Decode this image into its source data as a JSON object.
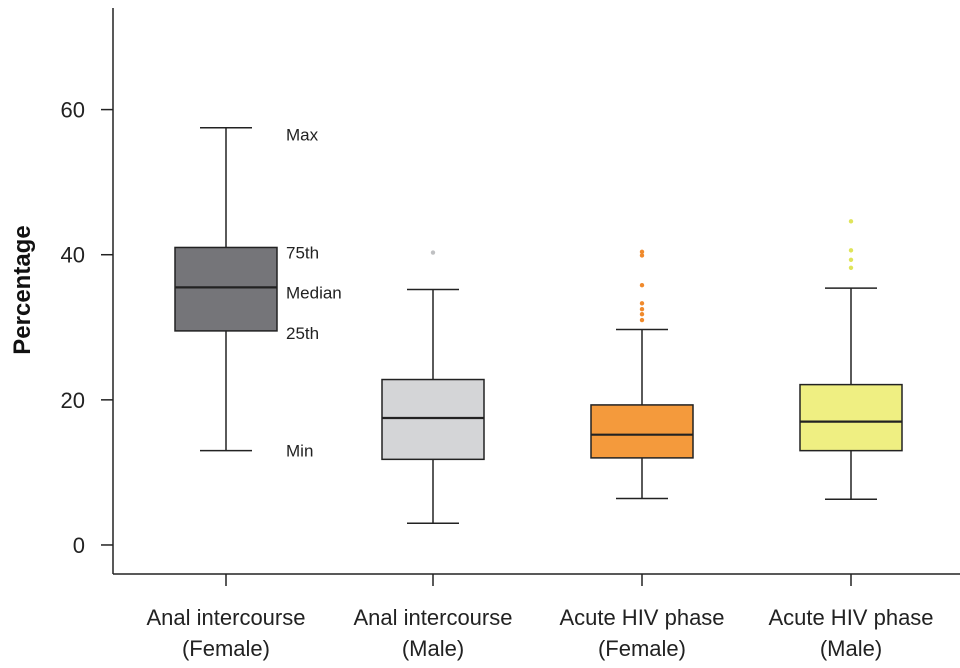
{
  "chart_data": {
    "type": "box",
    "ylabel": "Percentage",
    "ylim": [
      -4,
      74
    ],
    "yticks": [
      0,
      20,
      40,
      60
    ],
    "categories": [
      {
        "line1": "Anal intercourse",
        "line2": "(Female)"
      },
      {
        "line1": "Anal intercourse",
        "line2": "(Male)"
      },
      {
        "line1": "Acute HIV phase",
        "line2": "(Female)"
      },
      {
        "line1": "Acute HIV phase",
        "line2": "(Male)"
      }
    ],
    "boxes": [
      {
        "min": 13.0,
        "q1": 29.5,
        "median": 35.5,
        "q3": 41.0,
        "max": 57.5,
        "color": "#757579",
        "outliers": [],
        "outlier_color": "#757579"
      },
      {
        "min": 3.0,
        "q1": 11.8,
        "median": 17.5,
        "q3": 22.8,
        "max": 35.2,
        "color": "#d4d5d7",
        "outliers": [
          40.3
        ],
        "outlier_color": "#bfc0c2"
      },
      {
        "min": 6.4,
        "q1": 12.0,
        "median": 15.2,
        "q3": 19.3,
        "max": 29.7,
        "color": "#f49a3c",
        "outliers": [
          31.0,
          31.8,
          32.5,
          33.3,
          35.8,
          39.9,
          40.4
        ],
        "outlier_color": "#f08a2c"
      },
      {
        "min": 6.3,
        "q1": 13.0,
        "median": 17.0,
        "q3": 22.1,
        "max": 35.4,
        "color": "#efef82",
        "outliers": [
          38.2,
          39.3,
          40.6,
          44.6
        ],
        "outlier_color": "#dfe45a"
      }
    ],
    "annotations": {
      "max": "Max",
      "q3": "75th",
      "median": "Median",
      "q1": "25th",
      "min": "Min"
    }
  }
}
